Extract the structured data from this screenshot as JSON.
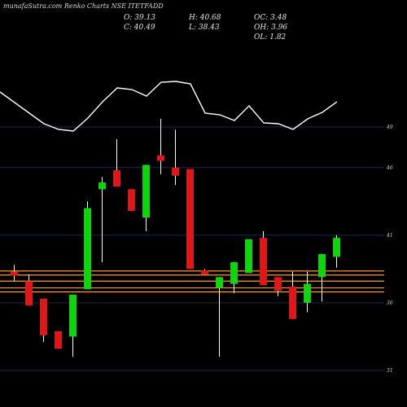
{
  "header": {
    "watermark": "munafaSutra.com",
    "title": "Renko Charts NSE ITETFADD"
  },
  "stats": {
    "open": "O: 39.13",
    "high": "H: 40.68",
    "oc": "OC: 3.48",
    "close": "C: 40.49",
    "low": "L: 38.43",
    "oh": "OH: 3.96",
    "ol": "OL: 1.82"
  },
  "colors": {
    "background": "#000000",
    "bull": "#00dd00",
    "bear": "#ee1111",
    "wick": "#ffffff",
    "grid": "#1c2a55",
    "level": "#ff9a2e"
  },
  "chart_data": {
    "type": "candlestick",
    "y_ticks": [
      "49",
      "46",
      "41",
      "36",
      "31"
    ],
    "y_tick_values": [
      49,
      46,
      41,
      36,
      31
    ],
    "candles": [
      {
        "o": 38.3,
        "c": 38.0,
        "h": 38.8,
        "l": 37.6
      },
      {
        "o": 37.6,
        "c": 35.8,
        "h": 38.1,
        "l": 35.8
      },
      {
        "o": 36.3,
        "c": 33.6,
        "h": 36.3,
        "l": 33.1
      },
      {
        "o": 33.9,
        "c": 32.6,
        "h": 33.9,
        "l": 32.6
      },
      {
        "o": 33.5,
        "c": 36.6,
        "h": 36.6,
        "l": 32.0
      },
      {
        "o": 37.0,
        "c": 43.0,
        "h": 43.5,
        "l": 37.0
      },
      {
        "o": 44.4,
        "c": 44.9,
        "h": 45.3,
        "l": 39.0
      },
      {
        "o": 45.8,
        "c": 44.6,
        "h": 48.1,
        "l": 44.6
      },
      {
        "o": 44.4,
        "c": 42.8,
        "h": 44.4,
        "l": 42.8
      },
      {
        "o": 42.3,
        "c": 46.2,
        "h": 46.2,
        "l": 41.3
      },
      {
        "o": 46.9,
        "c": 46.5,
        "h": 49.6,
        "l": 45.5
      },
      {
        "o": 46.0,
        "c": 45.4,
        "h": 48.8,
        "l": 44.7
      },
      {
        "o": 45.9,
        "c": 38.5,
        "h": 45.9,
        "l": 38.5
      },
      {
        "o": 38.4,
        "c": 38.1,
        "h": 38.5,
        "l": 38.1
      },
      {
        "o": 37.1,
        "c": 37.9,
        "h": 37.9,
        "l": 32.0
      },
      {
        "o": 37.4,
        "c": 39.0,
        "h": 39.0,
        "l": 36.7
      },
      {
        "o": 38.2,
        "c": 40.7,
        "h": 40.7,
        "l": 38.2
      },
      {
        "o": 40.8,
        "c": 37.3,
        "h": 41.3,
        "l": 37.3
      },
      {
        "o": 37.9,
        "c": 36.9,
        "h": 37.9,
        "l": 36.5
      },
      {
        "o": 37.2,
        "c": 34.8,
        "h": 38.3,
        "l": 34.8
      },
      {
        "o": 36.0,
        "c": 37.4,
        "h": 38.3,
        "l": 35.3
      },
      {
        "o": 37.9,
        "c": 39.6,
        "h": 39.6,
        "l": 36.1
      },
      {
        "o": 39.4,
        "c": 40.8,
        "h": 41.0,
        "l": 38.6
      }
    ],
    "upper_line": [
      113,
      126,
      139,
      152,
      159,
      161,
      145,
      125,
      108,
      110,
      118,
      101,
      100,
      103,
      139,
      141,
      148,
      130,
      151,
      152,
      159,
      146,
      138,
      125
    ],
    "levels": [
      38.35,
      38.05,
      37.6,
      37.1,
      36.8
    ]
  }
}
